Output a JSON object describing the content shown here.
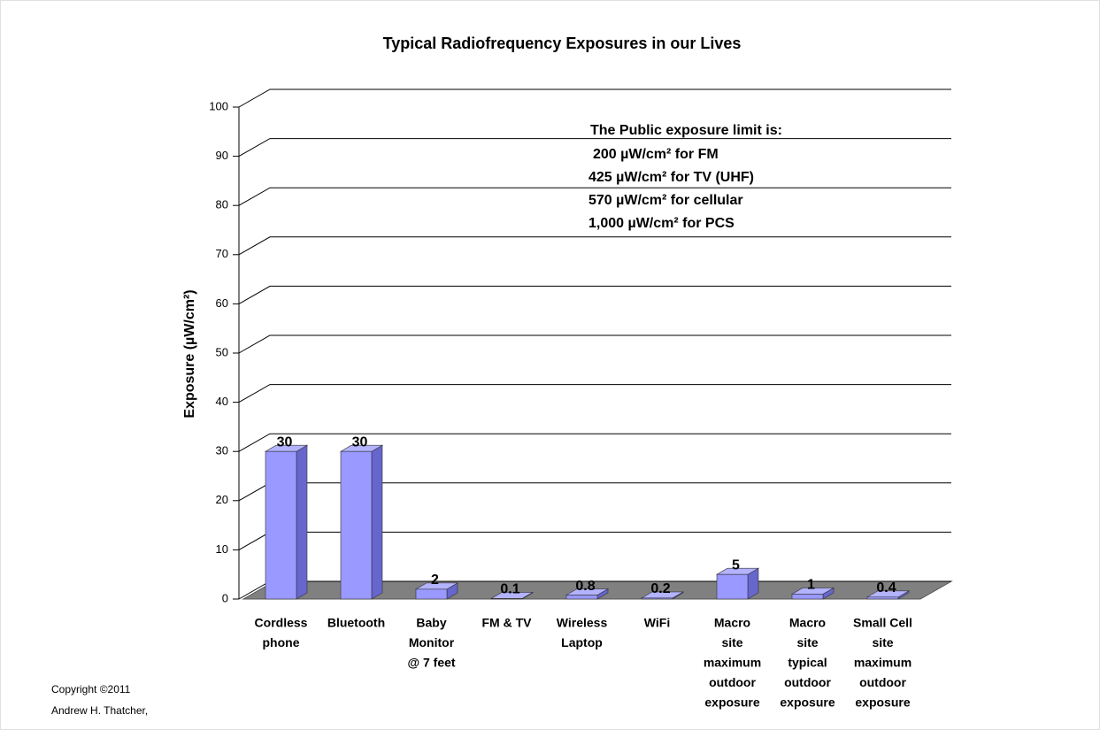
{
  "chart_data": {
    "type": "bar3d",
    "title": "Typical Radiofrequency Exposures in our Lives",
    "y_label": "Exposure (µW/cm²)",
    "categories": [
      [
        "Cordless",
        "phone"
      ],
      [
        "Bluetooth"
      ],
      [
        "Baby",
        "Monitor",
        "@ 7 feet"
      ],
      [
        "FM & TV"
      ],
      [
        "Wireless",
        "Laptop"
      ],
      [
        "WiFi"
      ],
      [
        "Macro",
        "site",
        "maximum",
        "outdoor",
        "exposure"
      ],
      [
        "Macro",
        "site",
        "typical",
        "outdoor",
        "exposure"
      ],
      [
        "Small Cell",
        "site",
        "maximum",
        "outdoor",
        "exposure"
      ]
    ],
    "values": [
      30,
      30,
      2,
      0.1,
      0.8,
      0.2,
      5,
      1,
      0.4
    ],
    "color": "#9999ff",
    "ylim": [
      0,
      100
    ],
    "yticks": [
      0,
      10,
      20,
      30,
      40,
      50,
      60,
      70,
      80,
      90,
      100
    ],
    "grid": true,
    "annotation": [
      "The Public exposure limit  is:",
      " 200 µW/cm² for FM",
      "425 µW/cm²  for TV (UHF)",
      "570 µW/cm²  for cellular",
      "1,000 µW/cm²  for PCS"
    ],
    "copyright": [
      "Copyright ©2011",
      "Andrew H. Thatcher,"
    ]
  }
}
